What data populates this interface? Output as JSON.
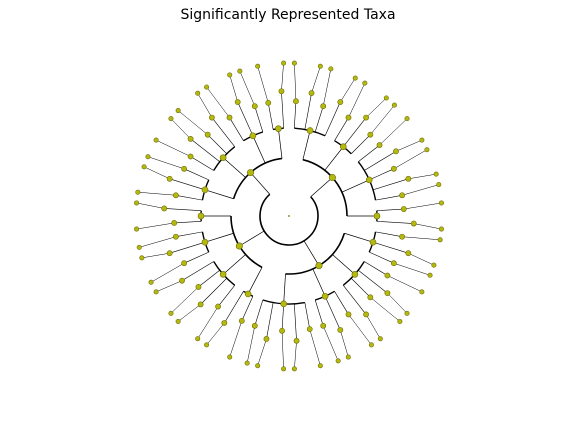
{
  "title": "Significantly Represented Taxa",
  "colors": {
    "node_fill": "#b5b80f",
    "node_stroke": "#6b6d00",
    "edge": "#000000",
    "background": "#ffffff"
  },
  "chart_data": {
    "type": "cladogram",
    "layout": "radial",
    "clade_groups": [
      4,
      3,
      5,
      2,
      3,
      4,
      3,
      5,
      2,
      4,
      3,
      2,
      3,
      4,
      3,
      2
    ]
  }
}
